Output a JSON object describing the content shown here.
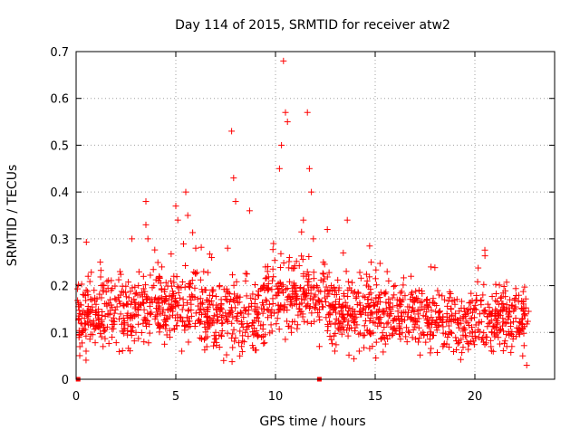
{
  "chart_data": {
    "type": "scatter",
    "title": "Day 114 of 2015, SRMTID for receiver atw2",
    "xlabel": "GPS time / hours",
    "ylabel": "SRMTID / TECUs",
    "xlim": [
      0,
      24
    ],
    "ylim": [
      0,
      0.7
    ],
    "xticks": [
      "0",
      "5",
      "10",
      "15",
      "20"
    ],
    "xtick_values": [
      0,
      5,
      10,
      15,
      20
    ],
    "yticks": [
      "0",
      "0.1",
      "0.2",
      "0.3",
      "0.4",
      "0.5",
      "0.6",
      "0.7"
    ],
    "ytick_values": [
      0,
      0.1,
      0.2,
      0.3,
      0.4,
      0.5,
      0.6,
      0.7
    ],
    "grid": true,
    "color": "#ff0000",
    "marker": "+",
    "x_range_of_data": [
      0.05,
      22.7
    ],
    "baseline_zero_points_x": [
      0.1,
      12.2
    ],
    "series": [
      {
        "name": "SRMTID",
        "points": [
          [
            0.2,
            0.14
          ],
          [
            0.3,
            0.1
          ],
          [
            0.4,
            0.18
          ],
          [
            0.5,
            0.06
          ],
          [
            0.6,
            0.22
          ],
          [
            0.7,
            0.15
          ],
          [
            0.8,
            0.12
          ],
          [
            0.9,
            0.19
          ],
          [
            1.0,
            0.16
          ],
          [
            1.2,
            0.11
          ],
          [
            1.4,
            0.2
          ],
          [
            1.6,
            0.14
          ],
          [
            1.8,
            0.09
          ],
          [
            2.0,
            0.17
          ],
          [
            2.2,
            0.23
          ],
          [
            2.4,
            0.12
          ],
          [
            2.6,
            0.16
          ],
          [
            2.8,
            0.3
          ],
          [
            3.0,
            0.1
          ],
          [
            3.2,
            0.18
          ],
          [
            3.4,
            0.08
          ],
          [
            3.5,
            0.38
          ],
          [
            3.5,
            0.33
          ],
          [
            3.6,
            0.3
          ],
          [
            3.7,
            0.14
          ],
          [
            3.9,
            0.2
          ],
          [
            4.1,
            0.12
          ],
          [
            4.3,
            0.24
          ],
          [
            4.5,
            0.17
          ],
          [
            4.7,
            0.09
          ],
          [
            4.9,
            0.22
          ],
          [
            5.0,
            0.37
          ],
          [
            5.1,
            0.34
          ],
          [
            5.3,
            0.06
          ],
          [
            5.5,
            0.4
          ],
          [
            5.6,
            0.35
          ],
          [
            5.8,
            0.18
          ],
          [
            6.0,
            0.28
          ],
          [
            6.2,
            0.12
          ],
          [
            6.4,
            0.23
          ],
          [
            6.6,
            0.15
          ],
          [
            6.8,
            0.26
          ],
          [
            7.0,
            0.1
          ],
          [
            7.2,
            0.2
          ],
          [
            7.4,
            0.04
          ],
          [
            7.6,
            0.28
          ],
          [
            7.8,
            0.53
          ],
          [
            7.9,
            0.43
          ],
          [
            8.0,
            0.38
          ],
          [
            8.1,
            0.14
          ],
          [
            8.3,
            0.07
          ],
          [
            8.5,
            0.21
          ],
          [
            8.7,
            0.36
          ],
          [
            8.9,
            0.12
          ],
          [
            9.1,
            0.18
          ],
          [
            9.3,
            0.09
          ],
          [
            9.5,
            0.24
          ],
          [
            9.7,
            0.16
          ],
          [
            9.9,
            0.29
          ],
          [
            10.1,
            0.13
          ],
          [
            10.2,
            0.45
          ],
          [
            10.3,
            0.5
          ],
          [
            10.4,
            0.68
          ],
          [
            10.5,
            0.57
          ],
          [
            10.6,
            0.55
          ],
          [
            10.7,
            0.26
          ],
          [
            10.8,
            0.1
          ],
          [
            11.0,
            0.2
          ],
          [
            11.2,
            0.15
          ],
          [
            11.4,
            0.34
          ],
          [
            11.6,
            0.57
          ],
          [
            11.7,
            0.45
          ],
          [
            11.8,
            0.4
          ],
          [
            11.9,
            0.3
          ],
          [
            12.0,
            0.18
          ],
          [
            12.2,
            0.07
          ],
          [
            12.4,
            0.25
          ],
          [
            12.6,
            0.32
          ],
          [
            12.8,
            0.2
          ],
          [
            13.0,
            0.12
          ],
          [
            13.2,
            0.16
          ],
          [
            13.4,
            0.27
          ],
          [
            13.6,
            0.34
          ],
          [
            13.8,
            0.19
          ],
          [
            14.0,
            0.11
          ],
          [
            14.2,
            0.06
          ],
          [
            14.4,
            0.15
          ],
          [
            14.6,
            0.21
          ],
          [
            14.8,
            0.25
          ],
          [
            15.0,
            0.12
          ],
          [
            15.2,
            0.18
          ],
          [
            15.4,
            0.09
          ],
          [
            15.6,
            0.23
          ],
          [
            15.8,
            0.14
          ],
          [
            16.0,
            0.2
          ],
          [
            16.2,
            0.11
          ],
          [
            16.4,
            0.17
          ],
          [
            16.6,
            0.08
          ],
          [
            16.8,
            0.22
          ],
          [
            17.0,
            0.13
          ],
          [
            17.2,
            0.19
          ],
          [
            17.4,
            0.1
          ],
          [
            17.6,
            0.16
          ],
          [
            17.8,
            0.24
          ],
          [
            18.0,
            0.12
          ],
          [
            18.2,
            0.18
          ],
          [
            18.4,
            0.07
          ],
          [
            18.6,
            0.14
          ],
          [
            18.8,
            0.1
          ],
          [
            19.0,
            0.16
          ],
          [
            19.2,
            0.11
          ],
          [
            19.4,
            0.13
          ],
          [
            19.6,
            0.08
          ],
          [
            19.8,
            0.15
          ],
          [
            20.0,
            0.1
          ],
          [
            20.2,
            0.12
          ],
          [
            20.4,
            0.18
          ],
          [
            20.6,
            0.09
          ],
          [
            20.8,
            0.14
          ],
          [
            21.0,
            0.11
          ],
          [
            21.2,
            0.16
          ],
          [
            21.4,
            0.13
          ],
          [
            21.6,
            0.07
          ],
          [
            21.8,
            0.12
          ],
          [
            22.0,
            0.17
          ],
          [
            22.2,
            0.1
          ],
          [
            22.4,
            0.05
          ],
          [
            22.5,
            0.14
          ],
          [
            22.6,
            0.03
          ]
        ]
      }
    ]
  }
}
